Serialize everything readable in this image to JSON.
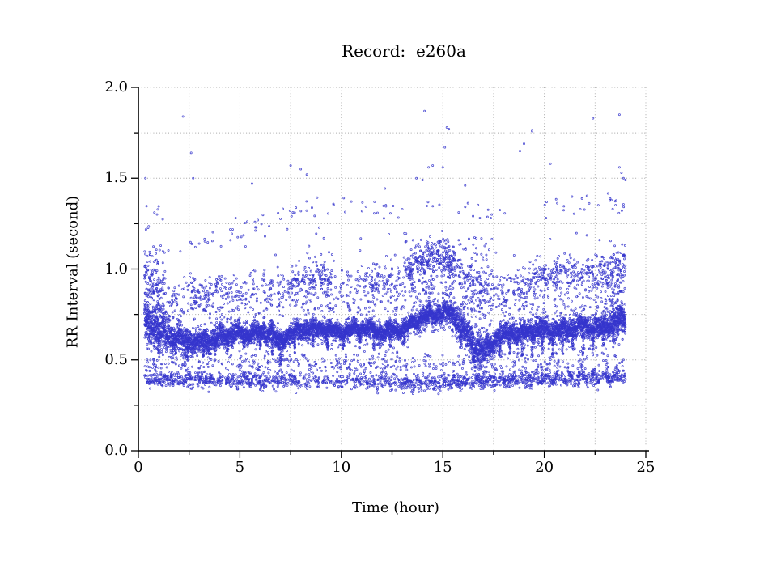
{
  "chart_data": {
    "type": "scatter",
    "title": "Record:  e260a",
    "xlabel": "Time (hour)",
    "ylabel": "RR Interval (second)",
    "xlim": [
      0,
      25
    ],
    "ylim": [
      0.0,
      2.0
    ],
    "x_tick_values": [
      0,
      5,
      10,
      15,
      20,
      25
    ],
    "x_tick_labels": [
      "0",
      "5",
      "10",
      "15",
      "20",
      "25"
    ],
    "x_minor_step": 2.5,
    "y_tick_values": [
      0.0,
      0.5,
      1.0,
      1.5,
      2.0
    ],
    "y_tick_labels": [
      "0.0",
      "0.5",
      "1.0",
      "1.5",
      "2.0"
    ],
    "y_minor_step": 0.25,
    "grid": {
      "show": true,
      "style": "dotted",
      "color": "#9b9b9b",
      "x_step": 2.5,
      "y_step": 0.25
    },
    "axis_color": "#000000",
    "marker": {
      "shape": "open-circle",
      "color": "#3535cd",
      "radius_px": 1.05
    },
    "time_range": [
      0.3,
      24.0
    ],
    "scatter_model": {
      "seed": 1234,
      "main_band": {
        "points_per_hour": 300,
        "mean_ctrl": [
          [
            0.3,
            0.7
          ],
          [
            0.6,
            0.685
          ],
          [
            1.0,
            0.665
          ],
          [
            1.5,
            0.635
          ],
          [
            2.0,
            0.605
          ],
          [
            2.5,
            0.595
          ],
          [
            3.0,
            0.6
          ],
          [
            3.5,
            0.615
          ],
          [
            4.0,
            0.625
          ],
          [
            4.5,
            0.635
          ],
          [
            5.0,
            0.645
          ],
          [
            6.0,
            0.65
          ],
          [
            6.6,
            0.645
          ],
          [
            6.9,
            0.575
          ],
          [
            7.1,
            0.615
          ],
          [
            7.5,
            0.655
          ],
          [
            8.0,
            0.665
          ],
          [
            9.0,
            0.665
          ],
          [
            10.0,
            0.66
          ],
          [
            11.0,
            0.665
          ],
          [
            12.0,
            0.66
          ],
          [
            13.0,
            0.665
          ],
          [
            13.5,
            0.695
          ],
          [
            14.0,
            0.735
          ],
          [
            14.6,
            0.755
          ],
          [
            15.0,
            0.765
          ],
          [
            15.4,
            0.745
          ],
          [
            15.8,
            0.7
          ],
          [
            16.1,
            0.655
          ],
          [
            16.4,
            0.6
          ],
          [
            16.7,
            0.565
          ],
          [
            17.0,
            0.55
          ],
          [
            17.3,
            0.57
          ],
          [
            17.7,
            0.625
          ],
          [
            18.0,
            0.645
          ],
          [
            18.5,
            0.655
          ],
          [
            19.0,
            0.65
          ],
          [
            19.5,
            0.66
          ],
          [
            20.0,
            0.665
          ],
          [
            20.5,
            0.66
          ],
          [
            21.0,
            0.67
          ],
          [
            21.5,
            0.675
          ],
          [
            22.0,
            0.67
          ],
          [
            22.5,
            0.68
          ],
          [
            23.0,
            0.695
          ],
          [
            23.5,
            0.72
          ],
          [
            24.0,
            0.7
          ]
        ],
        "sd_ctrl": [
          [
            0.3,
            0.05
          ],
          [
            1.5,
            0.042
          ],
          [
            3.0,
            0.032
          ],
          [
            5.0,
            0.028
          ],
          [
            7.0,
            0.026
          ],
          [
            9.0,
            0.024
          ],
          [
            13.0,
            0.022
          ],
          [
            14.0,
            0.028
          ],
          [
            15.5,
            0.032
          ],
          [
            16.6,
            0.042
          ],
          [
            17.5,
            0.034
          ],
          [
            19.0,
            0.03
          ],
          [
            21.0,
            0.03
          ],
          [
            23.0,
            0.034
          ],
          [
            24.0,
            0.045
          ]
        ],
        "fuzz_per_hour": 30,
        "fuzz_sd_mult": 3.0
      },
      "dips": {
        "width_h": 0.07,
        "points_each": 16,
        "events": [
          [
            1.0,
            0.13
          ],
          [
            1.7,
            0.1
          ],
          [
            2.4,
            0.1
          ],
          [
            3.2,
            0.09
          ],
          [
            3.8,
            0.1
          ],
          [
            4.4,
            0.11
          ],
          [
            5.2,
            0.09
          ],
          [
            6.0,
            0.1
          ],
          [
            6.6,
            0.12
          ],
          [
            7.0,
            0.16
          ],
          [
            7.7,
            0.12
          ],
          [
            8.6,
            0.1
          ],
          [
            9.3,
            0.11
          ],
          [
            10.1,
            0.1
          ],
          [
            10.9,
            0.1
          ],
          [
            11.6,
            0.11
          ],
          [
            12.4,
            0.1
          ],
          [
            13.1,
            0.09
          ],
          [
            15.9,
            0.12
          ],
          [
            16.5,
            0.1
          ],
          [
            17.8,
            0.11
          ],
          [
            18.3,
            0.12
          ],
          [
            18.9,
            0.13
          ],
          [
            19.4,
            0.14
          ],
          [
            19.9,
            0.15
          ],
          [
            20.4,
            0.14
          ],
          [
            20.9,
            0.15
          ],
          [
            21.4,
            0.14
          ],
          [
            21.9,
            0.15
          ],
          [
            22.4,
            0.14
          ],
          [
            22.9,
            0.13
          ],
          [
            23.4,
            0.12
          ]
        ]
      },
      "upper_band": {
        "center_ctrl": [
          [
            0.3,
            0.95
          ],
          [
            1.0,
            0.9
          ],
          [
            1.6,
            0.875
          ],
          [
            2.2,
            0.855
          ],
          [
            3.0,
            0.88
          ],
          [
            4.0,
            0.88
          ],
          [
            5.0,
            0.885
          ],
          [
            6.0,
            0.9
          ],
          [
            7.0,
            0.9
          ],
          [
            7.6,
            0.92
          ],
          [
            8.2,
            0.95
          ],
          [
            9.0,
            0.955
          ],
          [
            9.6,
            0.93
          ],
          [
            10.5,
            0.905
          ],
          [
            11.5,
            0.925
          ],
          [
            12.5,
            0.945
          ],
          [
            13.0,
            0.965
          ],
          [
            13.6,
            1.02
          ],
          [
            14.2,
            1.06
          ],
          [
            14.8,
            1.08
          ],
          [
            15.2,
            1.065
          ],
          [
            15.6,
            1.02
          ],
          [
            16.0,
            0.96
          ],
          [
            16.5,
            0.905
          ],
          [
            17.0,
            0.92
          ],
          [
            17.5,
            0.9
          ],
          [
            18.0,
            0.885
          ],
          [
            18.7,
            0.9
          ],
          [
            19.4,
            0.93
          ],
          [
            20.0,
            0.965
          ],
          [
            20.6,
            0.955
          ],
          [
            21.2,
            0.975
          ],
          [
            21.8,
            0.965
          ],
          [
            22.4,
            0.975
          ],
          [
            23.0,
            0.98
          ],
          [
            23.6,
            1.0
          ],
          [
            24.0,
            1.02
          ]
        ],
        "sd": 0.05,
        "density": [
          [
            0.3,
            1.3,
            70
          ],
          [
            1.3,
            2.2,
            28
          ],
          [
            2.2,
            4.2,
            45
          ],
          [
            4.2,
            7.5,
            32
          ],
          [
            7.5,
            9.6,
            75
          ],
          [
            9.6,
            11.3,
            30
          ],
          [
            11.3,
            13.3,
            55
          ],
          [
            13.3,
            15.6,
            95
          ],
          [
            15.6,
            17.4,
            55
          ],
          [
            17.4,
            19.3,
            45
          ],
          [
            19.3,
            23.2,
            75
          ],
          [
            23.2,
            24.0,
            70
          ]
        ]
      },
      "mid_scatter": {
        "per_hour": 14,
        "y_range": [
          0.76,
          0.88
        ]
      },
      "low_gap_scatter": {
        "per_hour": 7,
        "y_range": [
          0.455,
          0.53
        ]
      },
      "lower_band": {
        "center_ctrl": [
          [
            0.3,
            0.4
          ],
          [
            2.0,
            0.39
          ],
          [
            5.0,
            0.39
          ],
          [
            8.0,
            0.385
          ],
          [
            12.0,
            0.38
          ],
          [
            14.5,
            0.372
          ],
          [
            16.0,
            0.385
          ],
          [
            20.0,
            0.398
          ],
          [
            22.0,
            0.4
          ],
          [
            24.0,
            0.41
          ]
        ],
        "sd": 0.022,
        "density": [
          [
            0.3,
            7.8,
            75
          ],
          [
            7.8,
            9.8,
            40
          ],
          [
            9.8,
            13.0,
            55
          ],
          [
            13.0,
            24.0,
            85
          ]
        ],
        "above_scatter_per_hour": 9,
        "above_range": [
          0.43,
          0.5
        ]
      },
      "band_13": {
        "center_ctrl": [
          [
            0.3,
            1.27
          ],
          [
            1.0,
            1.3
          ],
          [
            2.5,
            1.13
          ],
          [
            4.0,
            1.2
          ],
          [
            6.0,
            1.26
          ],
          [
            8.0,
            1.31
          ],
          [
            10.0,
            1.335
          ],
          [
            12.0,
            1.34
          ],
          [
            14.0,
            1.35
          ],
          [
            16.0,
            1.33
          ],
          [
            18.0,
            1.34
          ],
          [
            20.0,
            1.33
          ],
          [
            22.0,
            1.35
          ],
          [
            23.5,
            1.36
          ],
          [
            24.0,
            1.33
          ]
        ],
        "sd": 0.035,
        "density": [
          [
            0.3,
            1.2,
            10
          ],
          [
            1.2,
            2.5,
            1
          ],
          [
            2.5,
            4.4,
            4
          ],
          [
            4.4,
            9.5,
            6
          ],
          [
            9.5,
            13.5,
            5
          ],
          [
            13.5,
            20.0,
            2.5
          ],
          [
            20.0,
            23.2,
            5
          ],
          [
            23.2,
            24.0,
            14
          ]
        ]
      },
      "gap_scatter_high": {
        "per_hour": 1.5,
        "y_range": [
          1.07,
          1.22
        ]
      },
      "columns": [
        [
          0.3,
          1.3,
          0.56,
          1.13,
          110
        ],
        [
          13.4,
          15.6,
          0.86,
          1.16,
          60
        ],
        [
          15.8,
          17.4,
          0.62,
          1.18,
          55
        ],
        [
          23.3,
          24.0,
          0.56,
          1.14,
          90
        ],
        [
          6.85,
          7.15,
          0.46,
          0.62,
          70
        ],
        [
          16.3,
          17.2,
          0.45,
          0.6,
          40
        ]
      ],
      "high_outliers": [
        [
          0.35,
          1.5
        ],
        [
          2.2,
          1.84
        ],
        [
          2.6,
          1.64
        ],
        [
          2.7,
          1.5
        ],
        [
          5.6,
          1.47
        ],
        [
          7.5,
          1.57
        ],
        [
          8.0,
          1.55
        ],
        [
          8.3,
          1.52
        ],
        [
          13.7,
          1.5
        ],
        [
          14.1,
          1.87
        ],
        [
          14.0,
          1.49
        ],
        [
          14.3,
          1.56
        ],
        [
          14.5,
          1.57
        ],
        [
          15.0,
          1.56
        ],
        [
          15.1,
          1.67
        ],
        [
          15.2,
          1.78
        ],
        [
          15.3,
          1.77
        ],
        [
          16.1,
          1.46
        ],
        [
          18.8,
          1.65
        ],
        [
          19.0,
          1.69
        ],
        [
          19.4,
          1.76
        ],
        [
          20.3,
          1.58
        ],
        [
          22.4,
          1.83
        ],
        [
          23.7,
          1.85
        ],
        [
          23.7,
          1.56
        ],
        [
          23.8,
          1.53
        ],
        [
          23.9,
          1.5
        ],
        [
          24.0,
          1.49
        ]
      ]
    }
  }
}
